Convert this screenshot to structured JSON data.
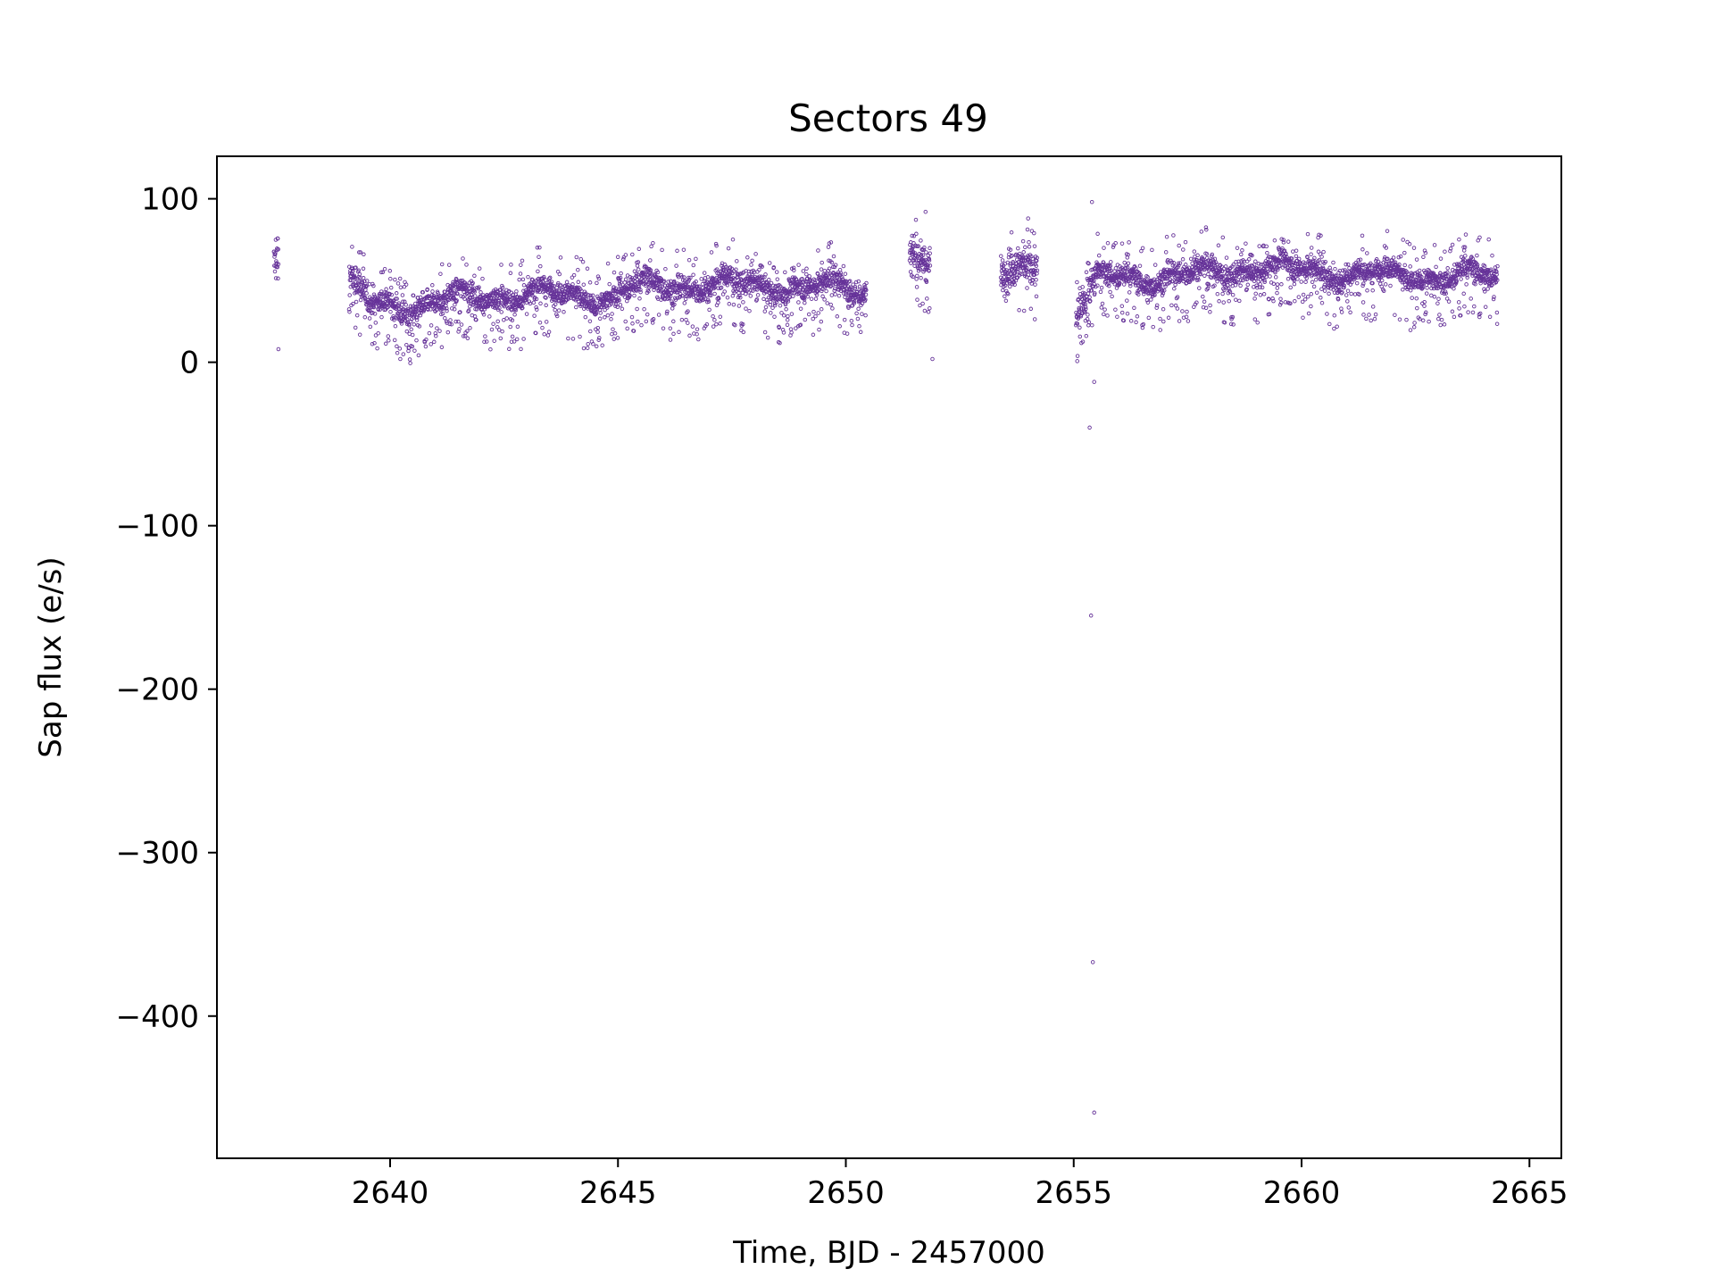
{
  "chart_data": {
    "type": "scatter",
    "title": "Sectors 49",
    "xlabel": "Time, BJD - 2457000",
    "ylabel": "Sap flux (e/s)",
    "xlim": [
      2636.2,
      2665.7
    ],
    "ylim": [
      -487,
      126
    ],
    "xticks": [
      2640,
      2645,
      2650,
      2655,
      2660,
      2665
    ],
    "yticks": [
      100,
      0,
      -100,
      -200,
      -300,
      -400
    ],
    "ytick_labels": [
      "100",
      "0",
      "−100",
      "−200",
      "−300",
      "−400"
    ],
    "grid": false,
    "legend": "none",
    "marker_color": "#663399",
    "series": [
      {
        "segments": [
          {
            "x": [
              2637.45,
              2637.55
            ],
            "base": [
              55,
              55
            ],
            "spread": 18
          },
          {
            "x": [
              2639.1,
              2639.5
            ],
            "base": [
              48,
              38
            ],
            "spread": 12
          },
          {
            "x": [
              2639.5,
              2641.0
            ],
            "base": [
              35,
              35
            ],
            "spread": 10
          },
          {
            "x": [
              2641.0,
              2643.0
            ],
            "base": [
              38,
              42
            ],
            "spread": 10
          },
          {
            "x": [
              2643.0,
              2645.0
            ],
            "base": [
              42,
              40
            ],
            "spread": 10
          },
          {
            "x": [
              2645.0,
              2647.0
            ],
            "base": [
              45,
              48
            ],
            "spread": 11
          },
          {
            "x": [
              2647.0,
              2650.45
            ],
            "base": [
              48,
              45
            ],
            "spread": 11
          },
          {
            "x": [
              2651.4,
              2651.85
            ],
            "base": [
              62,
              58
            ],
            "spread": 16
          },
          {
            "x": [
              2653.4,
              2654.2
            ],
            "base": [
              52,
              58
            ],
            "spread": 16
          },
          {
            "x": [
              2655.05,
              2655.5
            ],
            "base": [
              30,
              48
            ],
            "spread": 16
          },
          {
            "x": [
              2655.5,
              2657.0
            ],
            "base": [
              52,
              52
            ],
            "spread": 10
          },
          {
            "x": [
              2657.0,
              2659.0
            ],
            "base": [
              52,
              58
            ],
            "spread": 11
          },
          {
            "x": [
              2659.0,
              2661.0
            ],
            "base": [
              58,
              55
            ],
            "spread": 11
          },
          {
            "x": [
              2661.0,
              2664.3
            ],
            "base": [
              54,
              52
            ],
            "spread": 10
          }
        ],
        "outliers": [
          {
            "x": 2637.55,
            "y": 8
          },
          {
            "x": 2651.9,
            "y": 2
          },
          {
            "x": 2655.35,
            "y": -40
          },
          {
            "x": 2655.38,
            "y": -155
          },
          {
            "x": 2655.42,
            "y": -367
          },
          {
            "x": 2655.45,
            "y": -459
          },
          {
            "x": 2655.45,
            "y": -12
          },
          {
            "x": 2655.4,
            "y": 98
          },
          {
            "x": 2654.0,
            "y": 88
          },
          {
            "x": 2651.75,
            "y": 92
          }
        ]
      }
    ]
  }
}
